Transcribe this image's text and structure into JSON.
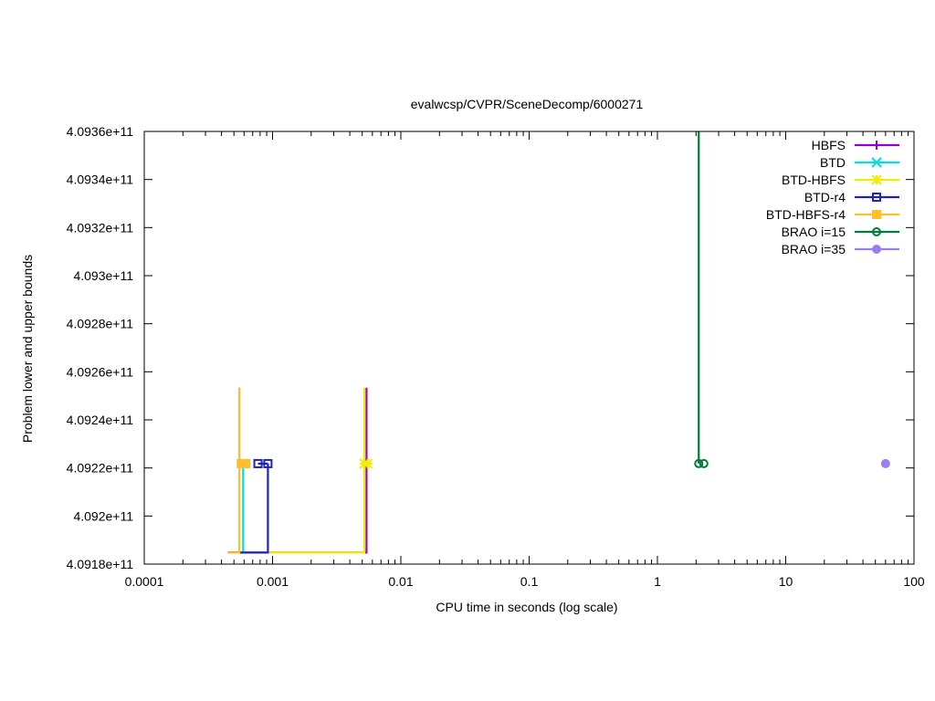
{
  "chart_data": {
    "type": "line",
    "title": "evalwcsp/CVPR/SceneDecomp/6000271",
    "xlabel": "CPU time in seconds (log scale)",
    "ylabel": "Problem lower and upper bounds",
    "x_scale": "log",
    "xlim": [
      0.0001,
      100
    ],
    "ylim": [
      409180000000,
      409360000000
    ],
    "x_ticks": [
      {
        "value": 0.0001,
        "label": "0.0001"
      },
      {
        "value": 0.001,
        "label": "0.001"
      },
      {
        "value": 0.01,
        "label": "0.01"
      },
      {
        "value": 0.1,
        "label": "0.1"
      },
      {
        "value": 1,
        "label": "1"
      },
      {
        "value": 10,
        "label": "10"
      },
      {
        "value": 100,
        "label": "100"
      }
    ],
    "y_ticks": [
      {
        "value": 409180000000,
        "label": "4.0918e+11"
      },
      {
        "value": 409200000000,
        "label": "4.092e+11"
      },
      {
        "value": 409220000000,
        "label": "4.0922e+11"
      },
      {
        "value": 409240000000,
        "label": "4.0924e+11"
      },
      {
        "value": 409260000000,
        "label": "4.0926e+11"
      },
      {
        "value": 409280000000,
        "label": "4.0928e+11"
      },
      {
        "value": 409300000000,
        "label": "4.093e+11"
      },
      {
        "value": 409320000000,
        "label": "4.0932e+11"
      },
      {
        "value": 409340000000,
        "label": "4.0934e+11"
      },
      {
        "value": 409360000000,
        "label": "4.0936e+11"
      }
    ],
    "grid": false,
    "legend_position": "top-right",
    "series": [
      {
        "name": "HBFS",
        "color": "#9400d3",
        "marker": "plus",
        "lower": [
          [
            0.00045,
            409184800000
          ],
          [
            0.0054,
            409184800000
          ],
          [
            0.0054,
            409221800000
          ]
        ],
        "upper": [
          [
            0.0054,
            409253400000
          ],
          [
            0.0054,
            409221800000
          ]
        ],
        "markers": [
          [
            0.0054,
            409221800000
          ]
        ]
      },
      {
        "name": "BTD",
        "color": "#00e0e0",
        "marker": "cross",
        "lower": [
          [
            0.00045,
            409184800000
          ],
          [
            0.00059,
            409184800000
          ],
          [
            0.00059,
            409221800000
          ]
        ],
        "upper": [
          [
            0.00055,
            409253400000
          ],
          [
            0.00055,
            409221800000
          ]
        ],
        "markers": [
          [
            0.00059,
            409221800000
          ]
        ]
      },
      {
        "name": "BTD-HBFS",
        "color": "#eeee00",
        "marker": "asterisk",
        "lower": [
          [
            0.00045,
            409184800000
          ],
          [
            0.0052,
            409184800000
          ],
          [
            0.0052,
            409221800000
          ]
        ],
        "upper": [
          [
            0.0052,
            409253400000
          ],
          [
            0.0052,
            409221800000
          ]
        ],
        "markers": [
          [
            0.0052,
            409221800000
          ],
          [
            0.0055,
            409221800000
          ]
        ]
      },
      {
        "name": "BTD-r4",
        "color": "#1f24b4",
        "marker": "open-square",
        "lower": [
          [
            0.00045,
            409184800000
          ],
          [
            0.00092,
            409184800000
          ],
          [
            0.00092,
            409221800000
          ]
        ],
        "upper": [
          [
            0.00077,
            409221800000
          ],
          [
            0.00092,
            409221800000
          ]
        ],
        "markers": [
          [
            0.00077,
            409221800000
          ],
          [
            0.00092,
            409221800000
          ]
        ]
      },
      {
        "name": "BTD-HBFS-r4",
        "color": "#ffbf2a",
        "marker": "filled-square",
        "lower": [
          [
            0.00045,
            409184800000
          ],
          [
            0.00055,
            409184800000
          ],
          [
            0.00055,
            409221800000
          ]
        ],
        "upper": [
          [
            0.00055,
            409253400000
          ],
          [
            0.00055,
            409221800000
          ]
        ],
        "markers": [
          [
            0.00057,
            409221800000
          ],
          [
            0.00062,
            409221800000
          ]
        ]
      },
      {
        "name": "BRAO i=15",
        "color": "#007a3d",
        "marker": "open-circle",
        "lower": [
          [
            2.2,
            409221800000
          ]
        ],
        "upper": [
          [
            2.1,
            409360000000
          ],
          [
            2.1,
            409221800000
          ]
        ],
        "markers": [
          [
            2.1,
            409221800000
          ],
          [
            2.3,
            409221800000
          ]
        ]
      },
      {
        "name": "BRAO i=35",
        "color": "#9a80ee",
        "marker": "filled-circle",
        "lower": [
          [
            60,
            409221800000
          ]
        ],
        "upper": [],
        "markers": [
          [
            60,
            409221800000
          ]
        ]
      }
    ]
  }
}
